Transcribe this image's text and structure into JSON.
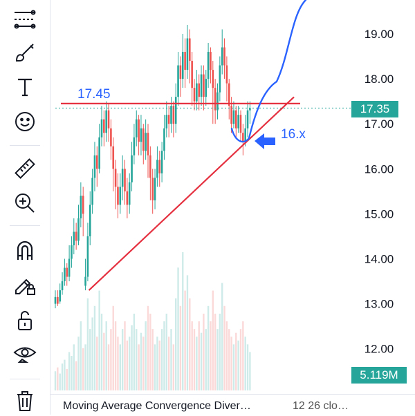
{
  "toolbar": {
    "tools": [
      {
        "name": "trend-line-tool-icon"
      },
      {
        "name": "brush-tool-icon"
      },
      {
        "name": "text-tool-icon"
      },
      {
        "name": "emoji-tool-icon"
      },
      {
        "name": "ruler-tool-icon"
      },
      {
        "name": "zoom-in-tool-icon"
      },
      {
        "name": "magnet-tool-icon"
      },
      {
        "name": "lock-drawings-pencil-icon"
      },
      {
        "name": "unlock-icon"
      },
      {
        "name": "eye-visibility-icon"
      },
      {
        "name": "trash-icon"
      }
    ]
  },
  "price_axis": {
    "ticks": [
      "19.00",
      "18.00",
      "17.00",
      "16.00",
      "15.00",
      "14.00",
      "13.00",
      "12.00"
    ]
  },
  "current_price_label": "17.35",
  "volume_badge": "5.119M",
  "annotations": {
    "level_label": "17.45",
    "target_label": "16.x"
  },
  "indicator": {
    "name": "Moving Average Convergence Diver…",
    "params": "12 26 clo…"
  },
  "colors": {
    "up": "#26a69a",
    "down": "#ef5350",
    "drawing_red": "#e53040",
    "drawing_blue": "#2962ff",
    "current_price_badge": "#26a69a"
  },
  "chart_data": {
    "type": "candlestick",
    "y_range": [
      11.6,
      19.7
    ],
    "current_price": 17.35,
    "resistance_level": 17.45,
    "support_line": {
      "from_bar": 13,
      "from_price": 13.3,
      "to_bar": 85,
      "to_price": 17.55
    },
    "candles": [
      [
        13.0,
        13.15,
        12.9,
        13.3
      ],
      [
        13.15,
        13.0,
        12.95,
        13.3
      ],
      [
        13.05,
        13.3,
        13.0,
        13.45
      ],
      [
        13.3,
        13.5,
        13.2,
        13.7
      ],
      [
        13.5,
        13.8,
        13.4,
        14.0
      ],
      [
        13.8,
        13.6,
        13.4,
        13.9
      ],
      [
        13.6,
        14.0,
        13.5,
        14.3
      ],
      [
        14.0,
        14.3,
        13.8,
        14.5
      ],
      [
        14.3,
        14.6,
        14.1,
        14.9
      ],
      [
        14.6,
        14.4,
        14.2,
        14.8
      ],
      [
        14.4,
        14.9,
        14.3,
        15.2
      ],
      [
        14.9,
        15.4,
        14.7,
        15.7
      ],
      [
        15.4,
        15.0,
        14.5,
        15.6
      ],
      [
        13.4,
        13.6,
        13.3,
        14.0
      ],
      [
        13.6,
        14.5,
        13.5,
        14.8
      ],
      [
        14.5,
        15.2,
        14.3,
        15.5
      ],
      [
        15.2,
        15.8,
        15.0,
        16.0
      ],
      [
        15.8,
        16.3,
        15.5,
        16.6
      ],
      [
        16.3,
        16.0,
        15.6,
        16.5
      ],
      [
        16.0,
        16.7,
        15.9,
        17.0
      ],
      [
        16.7,
        17.1,
        16.5,
        17.4
      ],
      [
        17.1,
        16.8,
        16.5,
        17.3
      ],
      [
        16.8,
        17.3,
        16.6,
        17.5
      ],
      [
        17.3,
        16.9,
        16.6,
        17.45
      ],
      [
        16.9,
        16.5,
        16.2,
        17.1
      ],
      [
        16.5,
        16.0,
        15.5,
        16.7
      ],
      [
        16.0,
        15.6,
        15.1,
        16.2
      ],
      [
        15.6,
        15.2,
        14.9,
        15.9
      ],
      [
        15.2,
        15.6,
        15.0,
        15.9
      ],
      [
        15.6,
        16.0,
        15.3,
        16.3
      ],
      [
        16.0,
        15.5,
        15.2,
        16.2
      ],
      [
        15.5,
        15.2,
        14.9,
        15.8
      ],
      [
        15.2,
        15.7,
        15.0,
        15.9
      ],
      [
        15.7,
        16.3,
        15.5,
        16.6
      ],
      [
        16.3,
        16.7,
        16.1,
        17.0
      ],
      [
        16.7,
        17.1,
        16.5,
        17.3
      ],
      [
        17.1,
        16.6,
        16.3,
        17.2
      ],
      [
        16.6,
        16.9,
        16.3,
        17.2
      ],
      [
        16.9,
        16.4,
        16.1,
        17.0
      ],
      [
        16.4,
        16.8,
        16.2,
        17.1
      ],
      [
        16.8,
        16.3,
        15.8,
        17.0
      ],
      [
        16.3,
        15.8,
        15.3,
        16.5
      ],
      [
        15.8,
        15.3,
        15.0,
        16.0
      ],
      [
        15.3,
        15.8,
        15.1,
        16.0
      ],
      [
        15.8,
        16.2,
        15.6,
        16.5
      ],
      [
        16.2,
        15.9,
        15.6,
        16.4
      ],
      [
        15.9,
        16.4,
        15.7,
        16.6
      ],
      [
        16.4,
        16.9,
        16.2,
        17.2
      ],
      [
        16.9,
        17.2,
        16.7,
        17.5
      ],
      [
        17.2,
        17.0,
        16.7,
        17.4
      ],
      [
        17.0,
        17.4,
        16.8,
        17.6
      ],
      [
        17.4,
        17.0,
        16.7,
        17.5
      ],
      [
        17.0,
        17.6,
        16.8,
        17.9
      ],
      [
        17.6,
        18.3,
        17.4,
        18.6
      ],
      [
        18.3,
        18.0,
        17.6,
        18.5
      ],
      [
        18.0,
        18.6,
        17.8,
        19.0
      ],
      [
        18.6,
        18.2,
        17.8,
        18.9
      ],
      [
        18.2,
        18.9,
        18.0,
        19.2
      ],
      [
        18.9,
        18.4,
        17.9,
        19.1
      ],
      [
        18.4,
        17.8,
        17.4,
        18.6
      ],
      [
        17.8,
        17.5,
        17.3,
        18.0
      ],
      [
        17.5,
        17.9,
        17.3,
        18.2
      ],
      [
        17.9,
        17.6,
        17.3,
        18.1
      ],
      [
        17.6,
        18.1,
        17.4,
        18.3
      ],
      [
        18.1,
        17.6,
        17.3,
        18.3
      ],
      [
        17.6,
        18.0,
        17.4,
        18.2
      ],
      [
        18.0,
        18.6,
        17.8,
        18.8
      ],
      [
        18.6,
        18.2,
        17.9,
        18.7
      ],
      [
        18.2,
        17.8,
        17.0,
        18.4
      ],
      [
        17.8,
        17.3,
        17.0,
        18.0
      ],
      [
        17.3,
        17.7,
        17.1,
        17.9
      ],
      [
        17.7,
        18.3,
        17.5,
        18.5
      ],
      [
        18.3,
        18.7,
        18.1,
        19.1
      ],
      [
        18.7,
        18.3,
        18.0,
        18.9
      ],
      [
        18.3,
        17.9,
        17.5,
        18.5
      ],
      [
        17.9,
        17.4,
        17.1,
        18.0
      ],
      [
        17.4,
        17.0,
        16.8,
        17.6
      ],
      [
        17.0,
        17.3,
        16.9,
        17.5
      ],
      [
        17.3,
        16.9,
        16.7,
        17.4
      ],
      [
        16.9,
        17.2,
        16.8,
        17.4
      ],
      [
        17.2,
        16.8,
        16.6,
        17.3
      ],
      [
        16.8,
        16.6,
        16.3,
        17.0
      ],
      [
        16.6,
        16.9,
        16.5,
        17.2
      ],
      [
        16.9,
        17.3,
        16.7,
        17.5
      ],
      [
        17.3,
        17.35,
        17.0,
        17.5
      ]
    ],
    "volume": [
      0.25,
      0.3,
      0.22,
      0.35,
      0.4,
      0.28,
      0.5,
      0.45,
      0.6,
      0.38,
      0.7,
      0.9,
      0.55,
      0.6,
      1.2,
      0.8,
      0.95,
      1.1,
      0.7,
      1.3,
      1.0,
      0.75,
      0.9,
      0.6,
      0.8,
      1.1,
      0.9,
      0.7,
      0.6,
      0.8,
      0.9,
      0.65,
      0.7,
      0.85,
      1.0,
      0.8,
      0.6,
      0.75,
      0.7,
      0.9,
      1.1,
      1.0,
      0.8,
      0.6,
      0.7,
      0.65,
      0.8,
      0.9,
      1.0,
      0.7,
      0.8,
      0.6,
      1.2,
      1.6,
      1.1,
      1.8,
      1.3,
      1.5,
      1.2,
      0.9,
      0.8,
      0.7,
      0.9,
      0.75,
      1.0,
      0.8,
      1.1,
      0.9,
      1.3,
      1.0,
      0.8,
      1.0,
      1.4,
      1.1,
      0.9,
      0.8,
      0.7,
      0.6,
      0.75,
      0.65,
      0.8,
      0.9,
      0.7,
      0.6,
      0.5
    ]
  }
}
